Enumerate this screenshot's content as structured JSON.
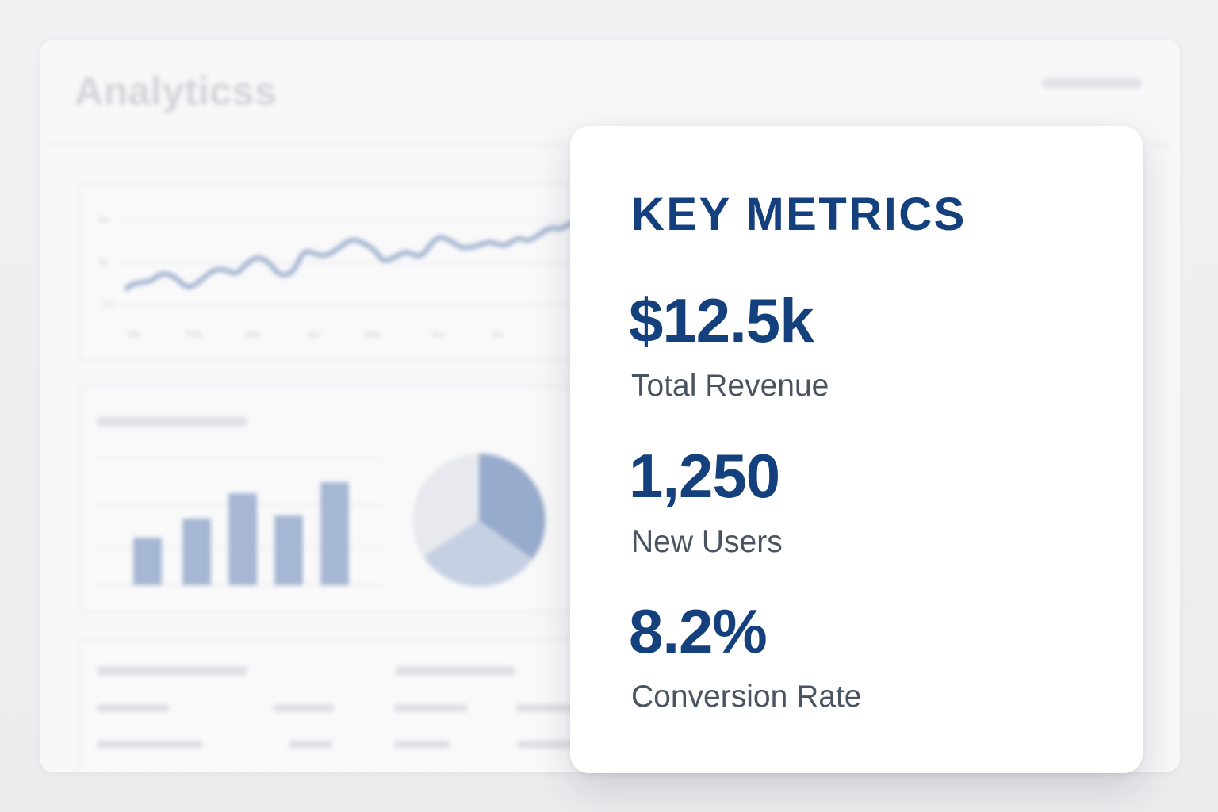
{
  "background": {
    "title": "Analyticss",
    "line_chart_axis_x": [
      "Jan",
      "Feb",
      "Mar",
      "Apr",
      "May",
      "Jun",
      "Jul"
    ],
    "line_chart_axis_y": [
      "30",
      "20",
      "10"
    ]
  },
  "card": {
    "title": "KEY METRICS",
    "metrics": [
      {
        "value": "$12.5k",
        "label": "Total Revenue"
      },
      {
        "value": "1,250",
        "label": "New Users"
      },
      {
        "value": "8.2%",
        "label": "Conversion Rate"
      }
    ]
  },
  "colors": {
    "accent": "#14407e",
    "label": "#4a5361",
    "chart_blur": "#9fb1cf"
  }
}
